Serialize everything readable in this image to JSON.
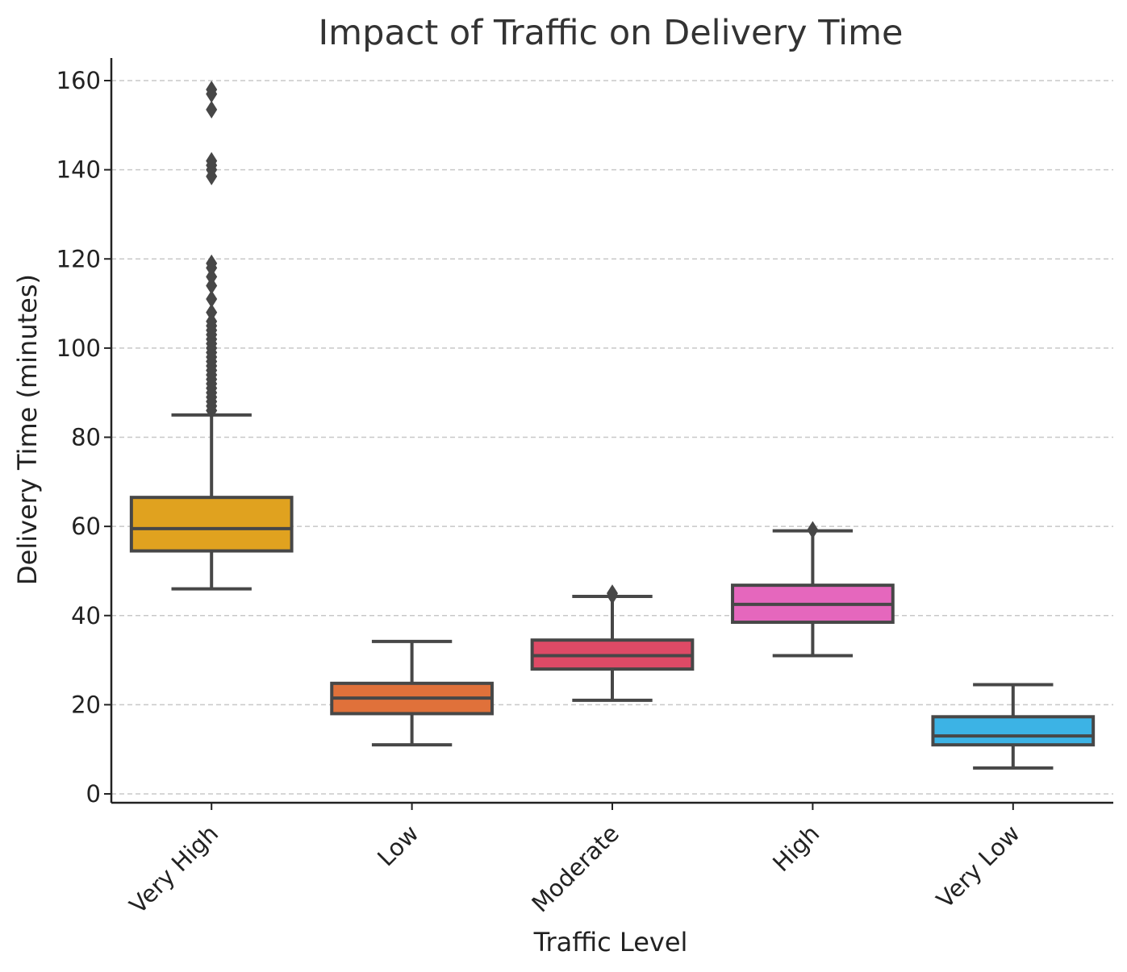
{
  "chart_data": {
    "type": "box",
    "title": "Impact of Traffic on Delivery Time",
    "xlabel": "Traffic Level",
    "ylabel": "Delivery Time (minutes)",
    "ylim": [
      -2,
      165
    ],
    "yticks": [
      0,
      20,
      40,
      60,
      80,
      100,
      120,
      140,
      160
    ],
    "grid": "y-dashed",
    "categories": [
      "Very High",
      "Low",
      "Moderate",
      "High",
      "Very Low"
    ],
    "colors": [
      "#e0a21f",
      "#e0713a",
      "#de4a66",
      "#e567bd",
      "#3cb3e5"
    ],
    "boxes": [
      {
        "category": "Very High",
        "whisker_low": 46,
        "q1": 54.5,
        "median": 59.5,
        "q3": 66.5,
        "whisker_high": 85,
        "outliers": [
          86,
          87,
          88,
          89,
          90,
          91,
          92,
          93,
          94,
          95,
          96,
          97,
          98,
          99,
          100,
          101,
          102,
          103,
          104,
          105,
          106,
          108,
          111,
          114,
          116,
          118,
          119,
          138.5,
          140,
          141,
          142,
          153.5,
          157,
          158
        ]
      },
      {
        "category": "Low",
        "whisker_low": 11,
        "q1": 18,
        "median": 21.5,
        "q3": 24.8,
        "whisker_high": 34.2,
        "outliers": []
      },
      {
        "category": "Moderate",
        "whisker_low": 21,
        "q1": 28,
        "median": 31,
        "q3": 34.5,
        "whisker_high": 44.3,
        "outliers": [
          44.5,
          45
        ]
      },
      {
        "category": "High",
        "whisker_low": 31,
        "q1": 38.5,
        "median": 42.5,
        "q3": 46.8,
        "whisker_high": 59,
        "outliers": [
          59.2
        ]
      },
      {
        "category": "Very Low",
        "whisker_low": 5.8,
        "q1": 11,
        "median": 13,
        "q3": 17.3,
        "whisker_high": 24.5,
        "outliers": []
      }
    ]
  }
}
